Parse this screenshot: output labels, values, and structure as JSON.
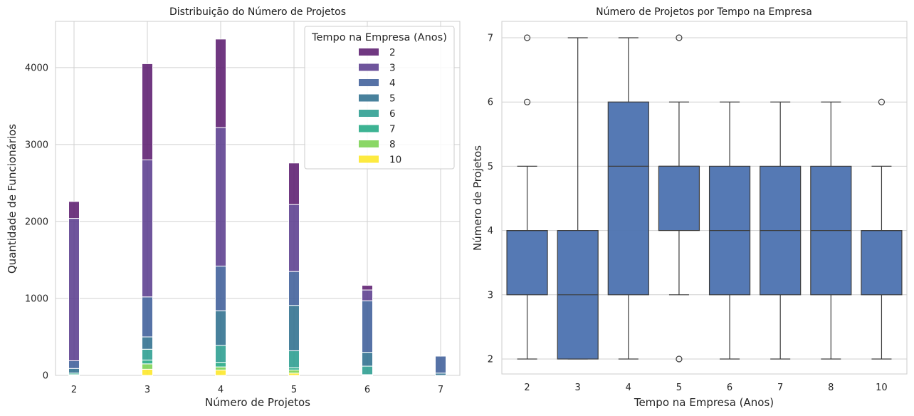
{
  "chart_data": [
    {
      "type": "bar",
      "stacked": true,
      "title": "Distribuição do Número de Projetos",
      "xlabel": "Número de Projetos",
      "ylabel": "Quantidade de Funcionários",
      "categories": [
        2,
        3,
        4,
        5,
        6,
        7
      ],
      "ylim": [
        0,
        4600
      ],
      "yticks": [
        0,
        1000,
        2000,
        3000,
        4000
      ],
      "grid": true,
      "legend": {
        "title": "Tempo na Empresa (Anos)",
        "placement": "top-right"
      },
      "colormap": "viridis",
      "series": [
        {
          "name": "10",
          "color": "#fde725",
          "values": [
            0,
            80,
            70,
            30,
            0,
            0
          ]
        },
        {
          "name": "8",
          "color": "#7ad151",
          "values": [
            10,
            70,
            40,
            40,
            0,
            0
          ]
        },
        {
          "name": "7",
          "color": "#22a884",
          "values": [
            20,
            50,
            60,
            30,
            10,
            0
          ]
        },
        {
          "name": "6",
          "color": "#2a9d8f",
          "values": [
            0,
            140,
            220,
            220,
            110,
            0
          ]
        },
        {
          "name": "5",
          "color": "#2f6f8e",
          "values": [
            60,
            160,
            450,
            590,
            180,
            30
          ]
        },
        {
          "name": "4",
          "color": "#3f5f9a",
          "values": [
            100,
            520,
            580,
            440,
            670,
            220
          ]
        },
        {
          "name": "3",
          "color": "#5b3e8e",
          "values": [
            1850,
            1780,
            1800,
            870,
            140,
            0
          ]
        },
        {
          "name": "2",
          "color": "#5c1d6f",
          "values": [
            220,
            1250,
            1150,
            540,
            60,
            0
          ]
        }
      ],
      "legend_order": [
        "2",
        "3",
        "4",
        "5",
        "6",
        "7",
        "8",
        "10"
      ]
    },
    {
      "type": "box",
      "title": "Número de Projetos por Tempo na Empresa",
      "xlabel": "Tempo na Empresa (Anos)",
      "ylabel": "Número de Projetos",
      "categories": [
        "2",
        "3",
        "4",
        "5",
        "6",
        "7",
        "8",
        "10"
      ],
      "ylim": [
        1.8,
        7.25
      ],
      "yticks": [
        2,
        3,
        4,
        5,
        6,
        7
      ],
      "grid": true,
      "color": "#4c72b0",
      "boxes": [
        {
          "q1": 3,
          "median": 4,
          "q3": 4,
          "whislo": 2,
          "whishi": 5,
          "fliers": [
            6,
            7
          ]
        },
        {
          "q1": 2,
          "median": 3,
          "q3": 4,
          "whislo": 2,
          "whishi": 7,
          "fliers": []
        },
        {
          "q1": 3,
          "median": 5,
          "q3": 6,
          "whislo": 2,
          "whishi": 7,
          "fliers": []
        },
        {
          "q1": 4,
          "median": 5,
          "q3": 5,
          "whislo": 3,
          "whishi": 6,
          "fliers": [
            2,
            7
          ]
        },
        {
          "q1": 3,
          "median": 4,
          "q3": 5,
          "whislo": 2,
          "whishi": 6,
          "fliers": []
        },
        {
          "q1": 3,
          "median": 4,
          "q3": 5,
          "whislo": 2,
          "whishi": 6,
          "fliers": []
        },
        {
          "q1": 3,
          "median": 4,
          "q3": 5,
          "whislo": 2,
          "whishi": 6,
          "fliers": []
        },
        {
          "q1": 3,
          "median": 4,
          "q3": 4,
          "whislo": 2,
          "whishi": 5,
          "fliers": [
            6
          ]
        }
      ]
    }
  ]
}
